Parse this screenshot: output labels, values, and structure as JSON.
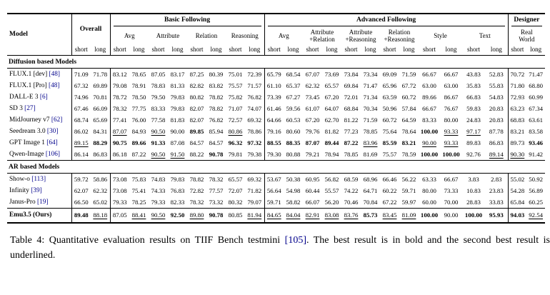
{
  "table": {
    "header": {
      "model": "Model",
      "overall": "Overall",
      "basic": "Basic Following",
      "advanced": "Advanced Following",
      "designer": "Designer",
      "basic_sub": [
        "Avg",
        "Attribute",
        "Relation",
        "Reasoning"
      ],
      "advanced_sub": [
        "Avg",
        "Attribute\n+Relation",
        "Attribute\n+Reasoning",
        "Relation\n+Reasoning",
        "Style",
        "Text"
      ],
      "designer_sub": [
        "Real\nWorld"
      ],
      "short": "short",
      "long": "long"
    },
    "sections": [
      {
        "title": "Diffusion based Models",
        "rows": [
          {
            "model": "FLUX.1 [dev]",
            "cite": "[48]",
            "bold": false,
            "values": [
              "71.09",
              "71.78",
              "83.12",
              "78.65",
              "87.05",
              "83.17",
              "87.25",
              "80.39",
              "75.01",
              "72.39",
              "65.79",
              "68.54",
              "67.07",
              "73.69",
              "73.84",
              "73.34",
              "69.09",
              "71.59",
              "66.67",
              "66.67",
              "43.83",
              "52.83",
              "70.72",
              "71.47"
            ]
          },
          {
            "model": "FLUX.1 [Pro]",
            "cite": "[48]",
            "bold": false,
            "values": [
              "67.32",
              "69.89",
              "79.08",
              "78.91",
              "78.83",
              "81.33",
              "82.82",
              "83.82",
              "75.57",
              "71.57",
              "61.10",
              "65.37",
              "62.32",
              "65.57",
              "69.84",
              "71.47",
              "65.96",
              "67.72",
              "63.00",
              "63.00",
              "35.83",
              "55.83",
              "71.80",
              "68.80"
            ]
          },
          {
            "model": "DALL-E 3",
            "cite": "[6]",
            "bold": false,
            "values": [
              "74.96",
              "70.81",
              "78.72",
              "78.50",
              "79.50",
              "79.83",
              "80.82",
              "78.82",
              "75.82",
              "76.82",
              "73.39",
              "67.27",
              "73.45",
              "67.20",
              "72.01",
              "71.34",
              "63.59",
              "60.72",
              "89.66",
              "86.67",
              "66.83",
              "54.83",
              "72.93",
              "60.99"
            ]
          },
          {
            "model": "SD 3",
            "cite": "[27]",
            "bold": false,
            "values": [
              "67.46",
              "66.09",
              "78.32",
              "77.75",
              "83.33",
              "79.83",
              "82.07",
              "78.82",
              "71.07",
              "74.07",
              "61.46",
              "59.56",
              "61.07",
              "64.07",
              "68.84",
              "70.34",
              "50.96",
              "57.84",
              "66.67",
              "76.67",
              "59.83",
              "20.83",
              "63.23",
              "67.34"
            ]
          },
          {
            "model": "MidJourney v7",
            "cite": "[62]",
            "bold": false,
            "values": [
              "68.74",
              "65.69",
              "77.41",
              "76.00",
              "77.58",
              "81.83",
              "82.07",
              "76.82",
              "72.57",
              "69.32",
              "64.66",
              "60.53",
              "67.20",
              "62.70",
              "81.22",
              "71.59",
              "60.72",
              "64.59",
              "83.33",
              "80.00",
              "24.83",
              "20.83",
              "68.83",
              "63.61"
            ]
          },
          {
            "model": "Seedream 3.0",
            "cite": "[30]",
            "bold": false,
            "values": [
              "86.02",
              "84.31",
              "u:87.07",
              "84.93",
              "u:90.50",
              "90.00",
              "b:89.85",
              "85.94",
              "u:80.86",
              "78.86",
              "79.16",
              "80.60",
              "79.76",
              "81.82",
              "77.23",
              "78.85",
              "75.64",
              "78.64",
              "b:100.00",
              "u:93.33",
              "u:97.17",
              "87.78",
              "83.21",
              "83.58"
            ]
          },
          {
            "model": "GPT Image 1",
            "cite": "[64]",
            "bold": false,
            "values": [
              "u:89.15",
              "b:88.29",
              "b:90.75",
              "b:89.66",
              "b:91.33",
              "87.08",
              "84.57",
              "84.57",
              "b:96.32",
              "b:97.32",
              "b:88.55",
              "b:88.35",
              "b:87.07",
              "b:89.44",
              "b:87.22",
              "u:83.96",
              "b:85.59",
              "b:83.21",
              "u:90.00",
              "u:93.33",
              "89.83",
              "86.83",
              "89.73",
              "b:93.46"
            ]
          },
          {
            "model": "Qwen-Image",
            "cite": "[106]",
            "bold": false,
            "values": [
              "86.14",
              "86.83",
              "86.18",
              "87.22",
              "u:90.50",
              "u:91.50",
              "88.22",
              "b:90.78",
              "79.81",
              "79.38",
              "79.30",
              "80.88",
              "79.21",
              "78.94",
              "78.85",
              "81.69",
              "75.57",
              "78.59",
              "b:100.00",
              "b:100.00",
              "92.76",
              "u:89.14",
              "u:90.30",
              "91.42"
            ]
          }
        ]
      },
      {
        "title": "AR based Models",
        "rows": [
          {
            "model": "Show-o",
            "cite": "[113]",
            "bold": false,
            "values": [
              "59.72",
              "58.86",
              "73.08",
              "75.83",
              "74.83",
              "79.83",
              "78.82",
              "78.32",
              "65.57",
              "69.32",
              "53.67",
              "50.38",
              "60.95",
              "56.82",
              "68.59",
              "68.96",
              "66.46",
              "56.22",
              "63.33",
              "66.67",
              "3.83",
              "2.83",
              "55.02",
              "50.92"
            ]
          },
          {
            "model": "Infinity",
            "cite": "[39]",
            "bold": false,
            "values": [
              "62.07",
              "62.32",
              "73.08",
              "75.41",
              "74.33",
              "76.83",
              "72.82",
              "77.57",
              "72.07",
              "71.82",
              "56.64",
              "54.98",
              "60.44",
              "55.57",
              "74.22",
              "64.71",
              "60.22",
              "59.71",
              "80.00",
              "73.33",
              "10.83",
              "23.83",
              "54.28",
              "56.89"
            ]
          },
          {
            "model": "Janus-Pro",
            "cite": "[19]",
            "bold": false,
            "values": [
              "66.50",
              "65.02",
              "79.33",
              "78.25",
              "79.33",
              "82.33",
              "78.32",
              "73.32",
              "80.32",
              "79.07",
              "59.71",
              "58.82",
              "66.07",
              "56.20",
              "70.46",
              "70.84",
              "67.22",
              "59.97",
              "60.00",
              "70.00",
              "28.83",
              "33.83",
              "65.84",
              "60.25"
            ]
          }
        ]
      }
    ],
    "final_row": {
      "model": "Emu3.5 (Ours)",
      "cite": "",
      "bold": true,
      "values": [
        "b:89.48",
        "u:88.18",
        "87.05",
        "u:88.41",
        "u:90.50",
        "b:92.50",
        "u:89.80",
        "b:90.78",
        "80.85",
        "u:81.94",
        "u:84.65",
        "u:84.04",
        "u:82.91",
        "u:83.08",
        "u:83.76",
        "b:85.73",
        "u:83.45",
        "u:81.09",
        "b:100.00",
        "90.00",
        "b:100.00",
        "b:95.93",
        "b:94.03",
        "u:92.54"
      ]
    }
  },
  "caption": {
    "pre": "Table 4: Quantitative evaluation results on TIIF Bench testmini ",
    "cite": "[105]",
    "post": ". The best result is in bold and the second best result is underlined."
  }
}
